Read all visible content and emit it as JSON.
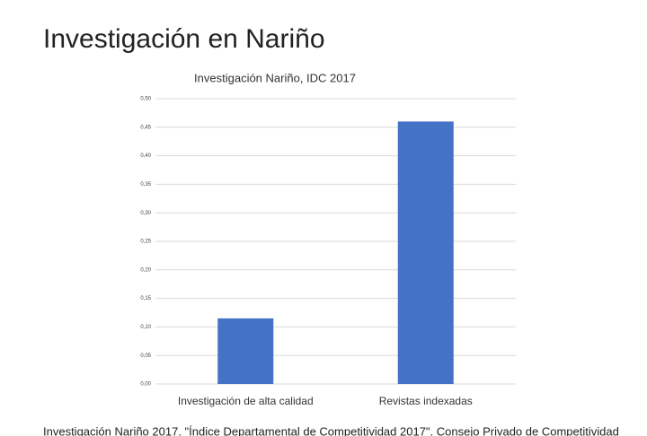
{
  "slide": {
    "title": "Investigación en Nariño",
    "source": "Investigación Nariño 2017. \"Índice Departamental de Competitividad 2017\". Consejo Privado de Competitividad"
  },
  "chart_data": {
    "type": "bar",
    "title": "Investigación Nariño, IDC  2017",
    "categories": [
      "Investigación de alta calidad",
      "Revistas indexadas"
    ],
    "values": [
      0.115,
      0.46
    ],
    "color": "#4472c4",
    "ylim": [
      0,
      0.5
    ],
    "yticks": [
      {
        "value": 0,
        "label": "0,00"
      },
      {
        "value": 0.05,
        "label": "0,05"
      },
      {
        "value": 0.1,
        "label": "0,10"
      },
      {
        "value": 0.15,
        "label": "0,15"
      },
      {
        "value": 0.2,
        "label": "0,20"
      },
      {
        "value": 0.25,
        "label": "0,25"
      },
      {
        "value": 0.3,
        "label": "0,30"
      },
      {
        "value": 0.35,
        "label": "0,35"
      },
      {
        "value": 0.4,
        "label": "0,40"
      },
      {
        "value": 0.45,
        "label": "0,45"
      },
      {
        "value": 0.5,
        "label": "0,50"
      }
    ],
    "grid": true
  }
}
